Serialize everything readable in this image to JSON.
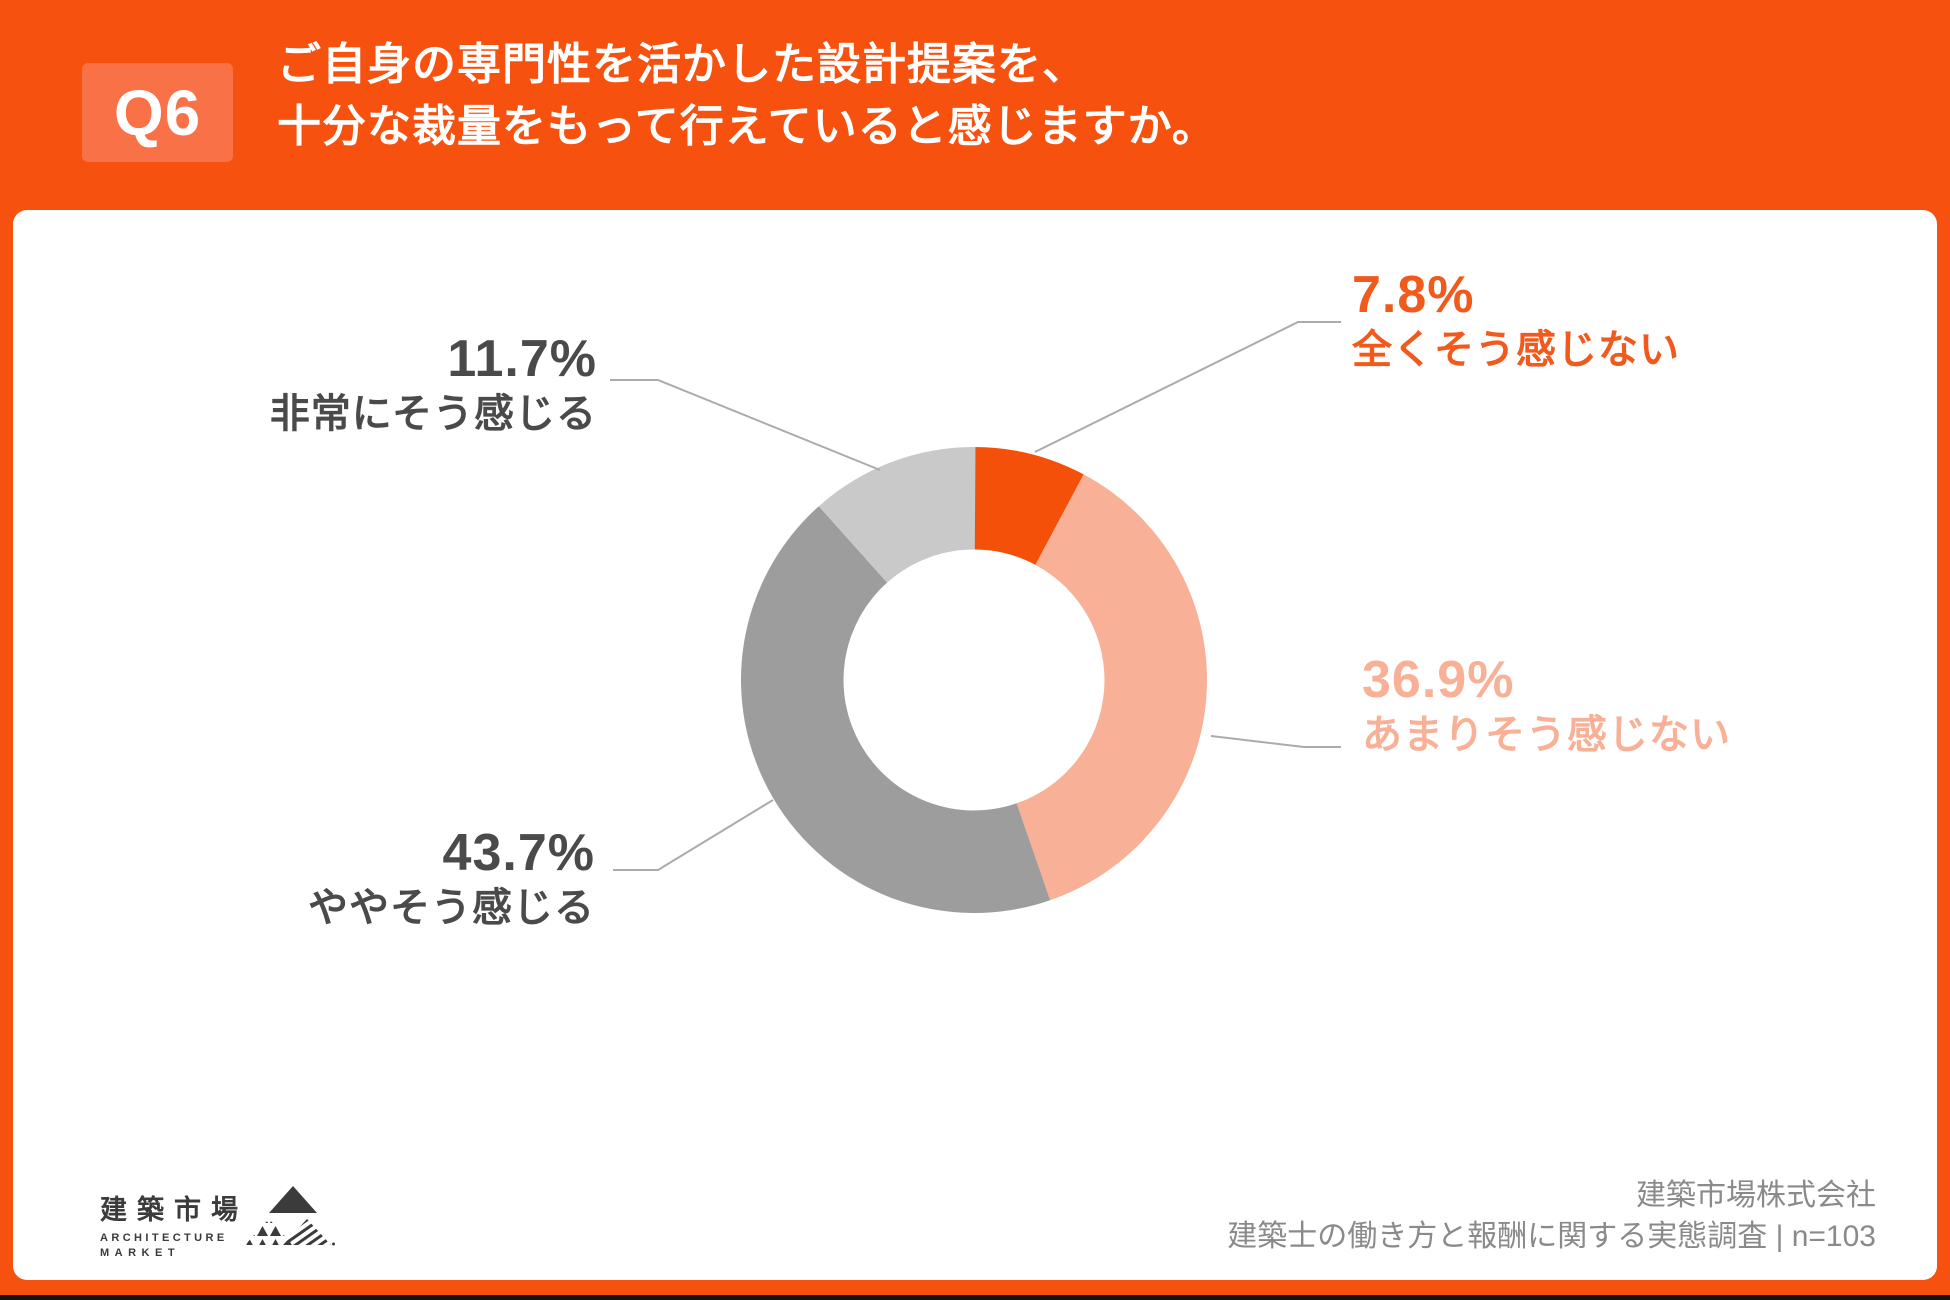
{
  "header": {
    "badge": "Q6",
    "question_line1": "ご自身の専門性を活かした設計提案を、",
    "question_line2": "十分な裁量をもって行えていると感じますか。"
  },
  "chart_data": {
    "type": "pie",
    "variant": "donut",
    "unit": "%",
    "direction": "clockwise",
    "start_angle_deg": 0,
    "inner_radius_ratio": 0.56,
    "legend_position": "callout-labels",
    "segments": [
      {
        "label": "全くそう感じない",
        "value": 7.8,
        "display": "7.8%",
        "color": "#F4500A",
        "label_color": "#F2591D"
      },
      {
        "label": "あまりそう感じない",
        "value": 36.9,
        "display": "36.9%",
        "color": "#F8B096",
        "label_color": "#F8B096"
      },
      {
        "label": "ややそう感じる",
        "value": 43.7,
        "display": "43.7%",
        "color": "#9D9D9D",
        "label_color": "#4A4A4A"
      },
      {
        "label": "非常にそう感じる",
        "value": 11.7,
        "display": "11.7%",
        "color": "#C9C9C9",
        "label_color": "#4A4A4A"
      }
    ],
    "leader_line_color": "#ABABAB"
  },
  "footer": {
    "logo": {
      "name_jp": "建築市場",
      "name_en_line1": "ARCHITECTURE",
      "name_en_line2": "MARKET"
    },
    "company": "建築市場株式会社",
    "survey": "建築士の働き方と報酬に関する実態調査 | n=103"
  },
  "colors": {
    "header_background": "#F6510E",
    "badge_background": "#F97146",
    "panel_background": "#FFFFFF",
    "footer_text": "#8A8A8A",
    "logo_text": "#3B3B3B"
  }
}
